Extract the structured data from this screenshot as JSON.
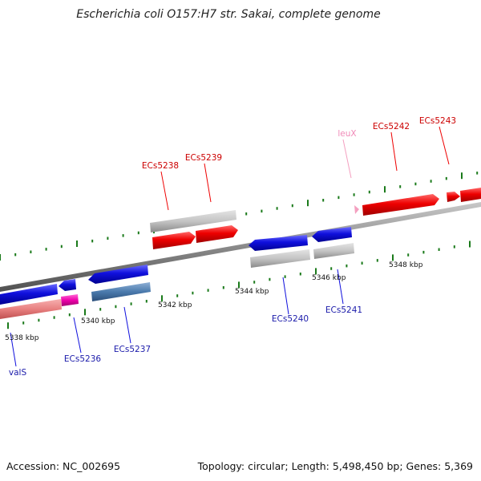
{
  "title": "Escherichia coli O157:H7 str. Sakai, complete genome",
  "footer": {
    "accession": "Accession: NC_002695",
    "summary": "Topology: circular; Length: 5,498,450 bp; Genes: 5,369"
  },
  "ticks": [
    "5338 kbp",
    "5340 kbp",
    "5342 kbp",
    "5344 kbp",
    "5346 kbp",
    "5348 kbp"
  ],
  "genes": {
    "forward": [
      "ECs5238",
      "ECs5239",
      "leuX",
      "ECs5242",
      "ECs5243"
    ],
    "reverse": [
      "valS",
      "ECs5236",
      "ECs5237",
      "ECs5240",
      "ECs5241"
    ]
  },
  "colors": {
    "forward_cds": "#ee0000",
    "reverse_cds": "#1010dd",
    "trna": "#f4a0c0",
    "backbone": "#8a8a8a",
    "tick_mark": "#1a7a1a",
    "label_forward": "#cc0000",
    "label_reverse": "#1a1aaa"
  }
}
